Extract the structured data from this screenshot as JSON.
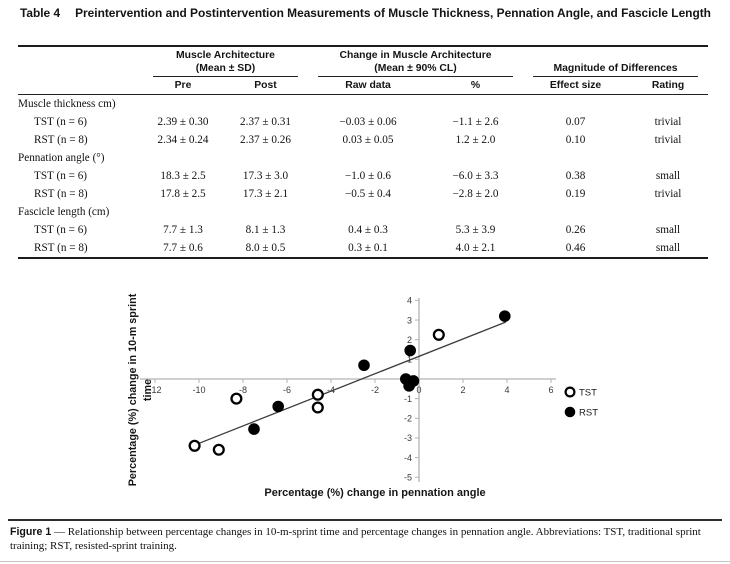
{
  "colors": {
    "text": "#111111",
    "rule": "#1c1c1c",
    "axis": "#b3b3b3",
    "tick_label": "#3a3a3a",
    "trend": "#3c3c3c",
    "marker": "#000000"
  },
  "table": {
    "label": "Table 4",
    "title": "Preintervention and Postintervention Measurements of Muscle Thickness, Pennation Angle, and Fascicle Length",
    "groups": [
      {
        "line1": "Muscle Architecture",
        "line2": "(Mean ± SD)"
      },
      {
        "line1": "Change in Muscle Architecture",
        "line2": "(Mean ± 90% CL)"
      },
      {
        "line1": "Magnitude of Differences",
        "line2": ""
      }
    ],
    "subheaders": [
      "Pre",
      "Post",
      "Raw data",
      "%",
      "Effect size",
      "Rating"
    ],
    "rows": [
      {
        "type": "section",
        "label": "Muscle thickness cm)"
      },
      {
        "type": "data",
        "label": "TST (n = 6)",
        "values": [
          "2.39 ± 0.30",
          "2.37 ± 0.31",
          "−0.03 ± 0.06",
          "−1.1 ± 2.6",
          "0.07",
          "trivial"
        ]
      },
      {
        "type": "data",
        "label": "RST (n = 8)",
        "values": [
          "2.34 ± 0.24",
          "2.37 ± 0.26",
          "0.03 ± 0.05",
          "1.2 ± 2.0",
          "0.10",
          "trivial"
        ]
      },
      {
        "type": "section",
        "label": "Pennation angle (°)"
      },
      {
        "type": "data",
        "label": "TST (n = 6)",
        "values": [
          "18.3 ± 2.5",
          "17.3 ± 3.0",
          "−1.0 ± 0.6",
          "−6.0 ± 3.3",
          "0.38",
          "small"
        ]
      },
      {
        "type": "data",
        "label": "RST (n = 8)",
        "values": [
          "17.8 ± 2.5",
          "17.3 ± 2.1",
          "−0.5 ± 0.4",
          "−2.8 ± 2.0",
          "0.19",
          "trivial"
        ]
      },
      {
        "type": "section",
        "label": "Fascicle length (cm)"
      },
      {
        "type": "data",
        "label": "TST (n = 6)",
        "values": [
          "7.7 ± 1.3",
          "8.1 ± 1.3",
          "0.4 ± 0.3",
          "5.3 ± 3.9",
          "0.26",
          "small"
        ]
      },
      {
        "type": "data",
        "label": "RST (n = 8)",
        "values": [
          "7.7 ± 0.6",
          "8.0 ± 0.5",
          "0.3 ± 0.1",
          "4.0 ± 2.1",
          "0.46",
          "small"
        ]
      }
    ]
  },
  "chart_data": {
    "type": "scatter",
    "xlabel": "Percentage (%) change in pennation angle",
    "ylabel_line1": "Percentage (%) change in 10-m sprint",
    "ylabel_line2": "time",
    "xlim": [
      -12,
      6
    ],
    "ylim": [
      -5,
      4
    ],
    "x_ticks": [
      -12,
      -10,
      -8,
      -6,
      -4,
      -2,
      0,
      2,
      4,
      6
    ],
    "y_ticks": [
      4,
      3,
      2,
      1,
      -1,
      -2,
      -3,
      -4,
      -5
    ],
    "legend_position": "right",
    "legend": [
      {
        "name": "TST",
        "marker": "open"
      },
      {
        "name": "RST",
        "marker": "filled"
      }
    ],
    "series": [
      {
        "name": "TST",
        "marker": "open",
        "points": [
          [
            -10.2,
            -3.4
          ],
          [
            -9.1,
            -3.6
          ],
          [
            -8.3,
            -1.0
          ],
          [
            -4.6,
            -0.8
          ],
          [
            -4.6,
            -1.45
          ],
          [
            0.9,
            2.25
          ]
        ]
      },
      {
        "name": "RST",
        "marker": "filled",
        "points": [
          [
            -7.5,
            -2.55
          ],
          [
            -6.4,
            -1.4
          ],
          [
            -2.5,
            0.7
          ],
          [
            -0.6,
            0.0
          ],
          [
            -0.45,
            -0.35
          ],
          [
            -0.25,
            -0.1
          ],
          [
            -0.4,
            1.45
          ],
          [
            3.9,
            3.2
          ]
        ]
      }
    ],
    "trendline": {
      "x1": -10.4,
      "y1": -3.45,
      "x2": 3.95,
      "y2": 2.9
    }
  },
  "caption": {
    "label": "Figure 1",
    "text": "— Relationship between percentage changes in 10-m-sprint time and percentage changes in pennation angle. Abbreviations: TST, traditional sprint training; RST, resisted-sprint training."
  }
}
